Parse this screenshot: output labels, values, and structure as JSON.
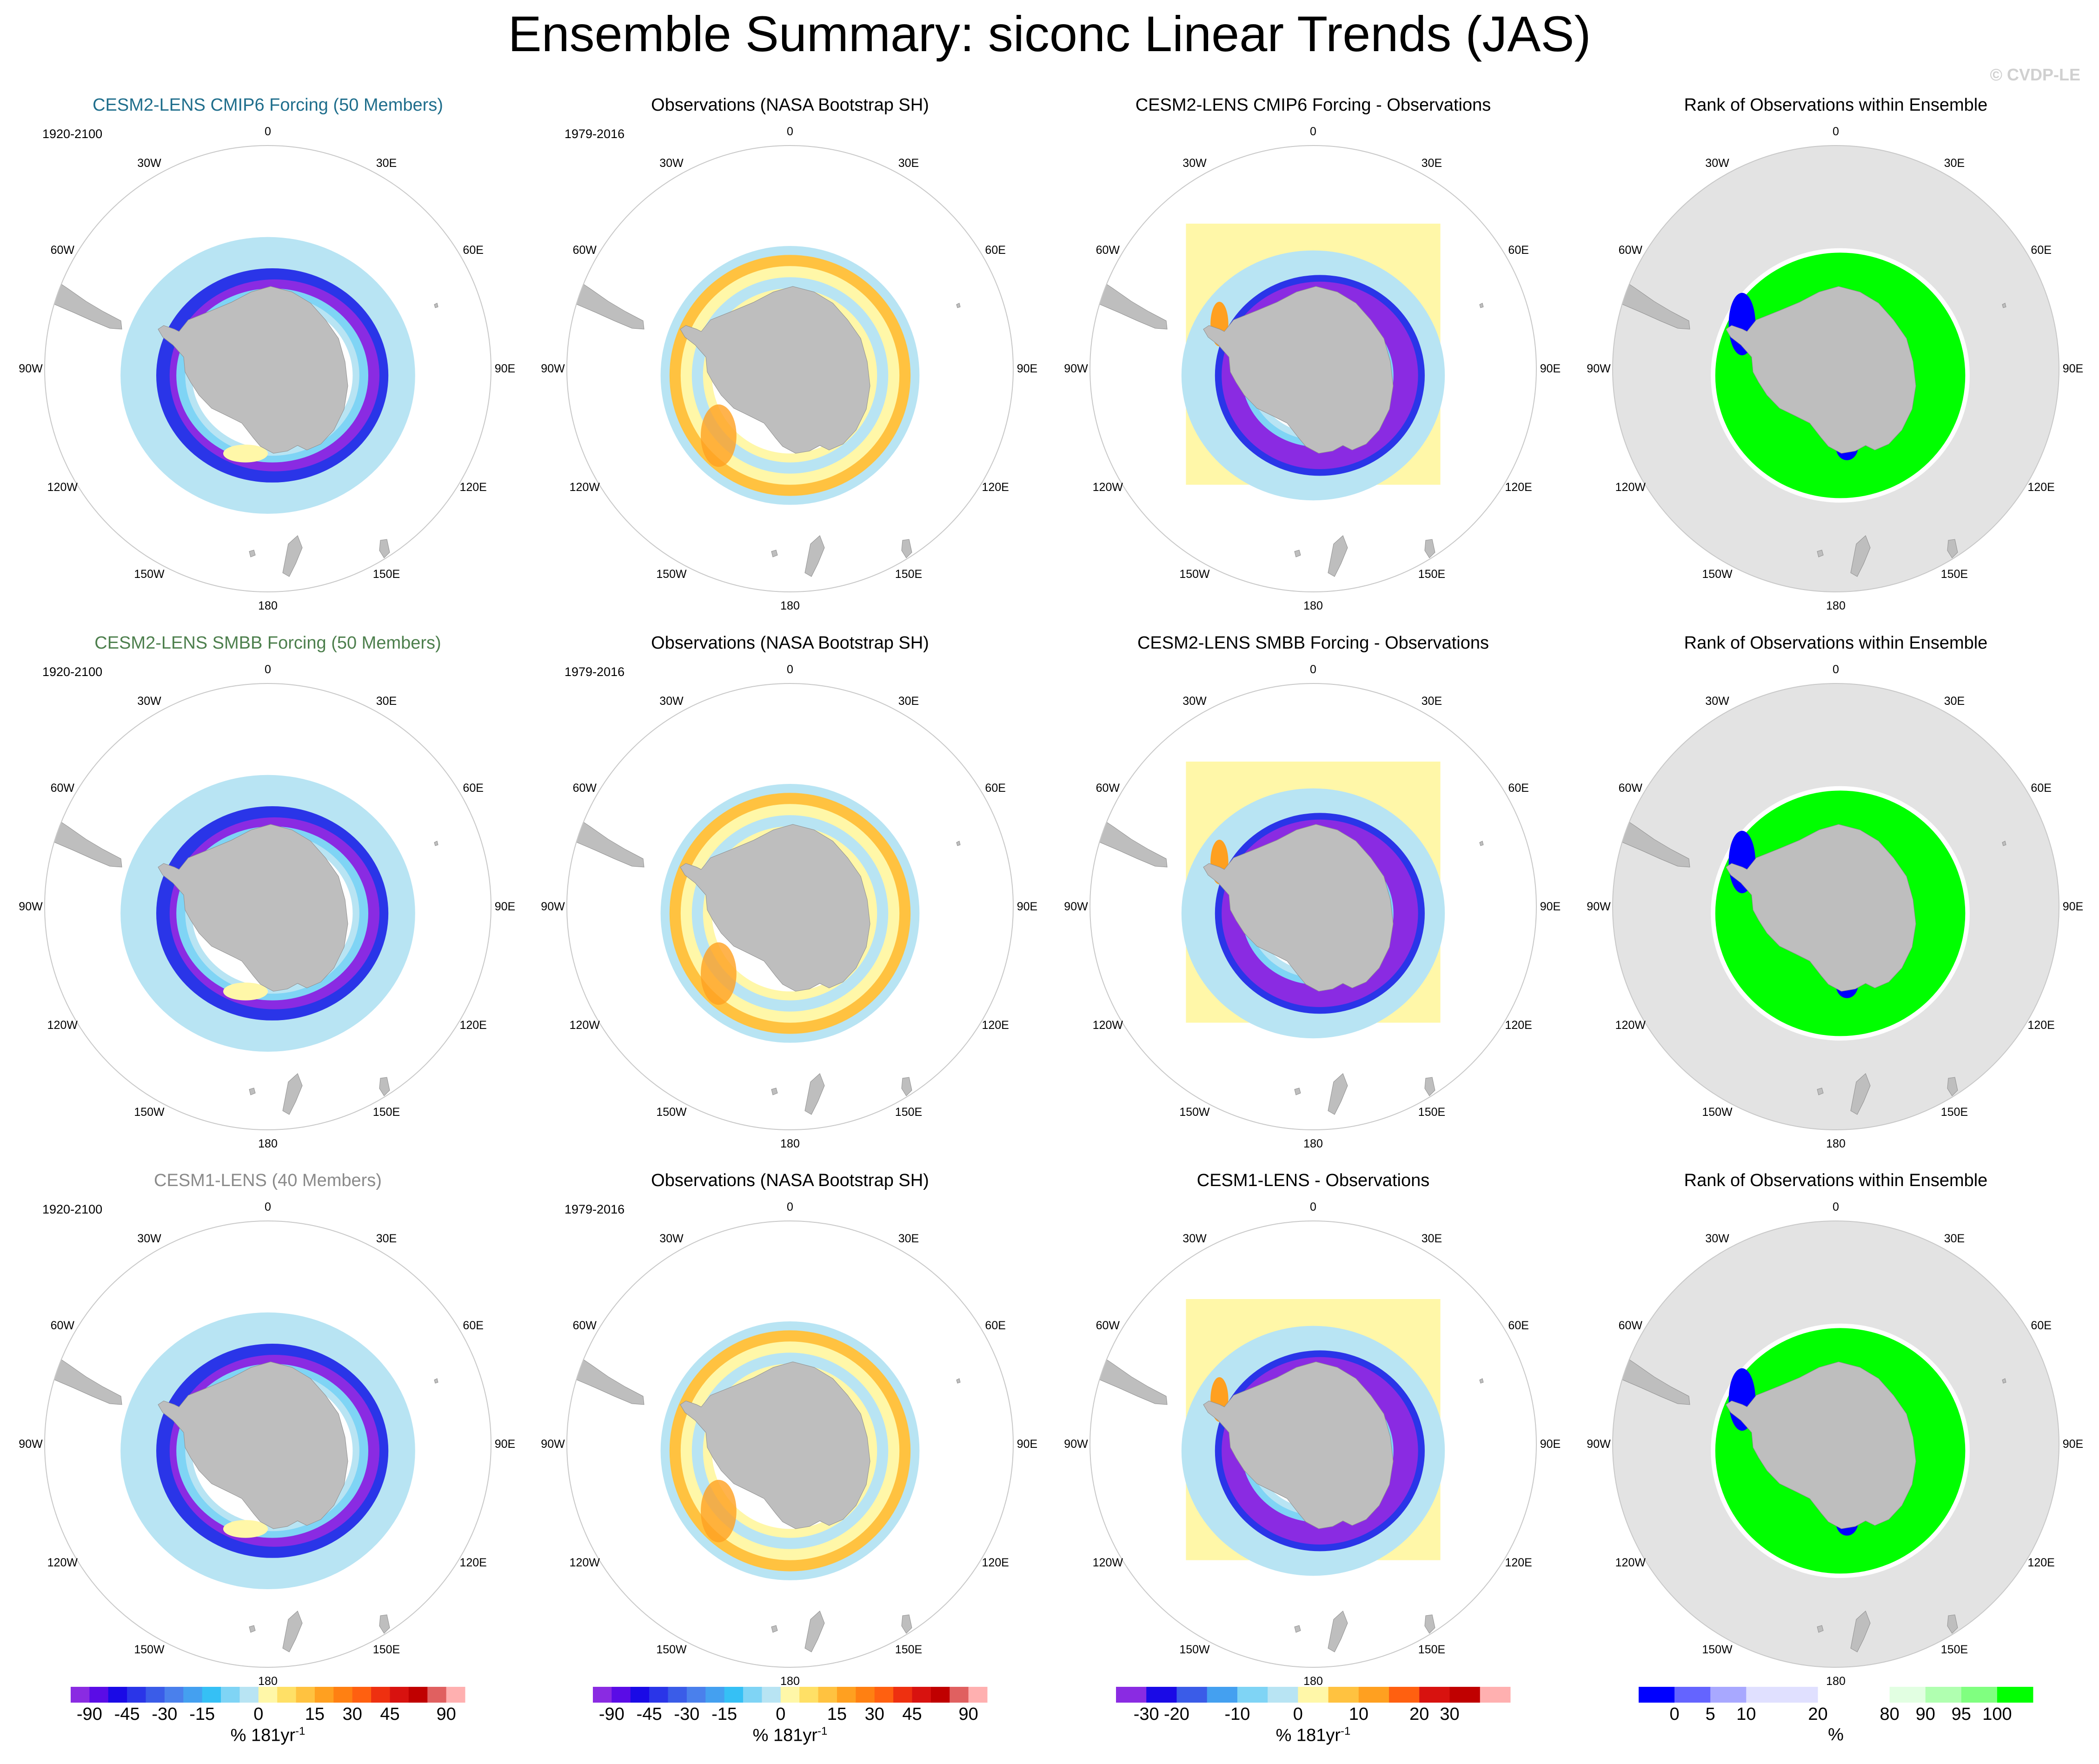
{
  "title": "Ensemble Summary: siconc Linear Trends (JAS)",
  "credit": "© CVDP-LE",
  "map_lon_labels": [
    "0",
    "30E",
    "60E",
    "90E",
    "120E",
    "150E",
    "180",
    "150W",
    "120W",
    "90W",
    "60W",
    "30W"
  ],
  "colors": {
    "ocean": "#ffffff",
    "land": "#bebebe",
    "rank_ocean": "#e3e3e3",
    "ring_edge": "#c8c8c8",
    "title_cmip6": "#1f6e8c",
    "title_smbb": "#4d7f4d",
    "title_cesm1": "#8a8a8a"
  },
  "chart_data": [
    {
      "type": "heatmap",
      "title": "CESM2-LENS CMIP6 Forcing (50 Members)",
      "period": "1920-2100",
      "field": "ensemble_mean_trend",
      "projection": "south-polar-stereographic",
      "colorbar": "trend90"
    },
    {
      "type": "heatmap",
      "title": "Observations (NASA Bootstrap SH)",
      "period": "1979-2016",
      "field": "observed_trend",
      "projection": "south-polar-stereographic",
      "colorbar": "trend90"
    },
    {
      "type": "heatmap",
      "title": "CESM2-LENS CMIP6 Forcing - Observations",
      "period": "",
      "field": "difference",
      "projection": "south-polar-stereographic",
      "colorbar": "diff30"
    },
    {
      "type": "heatmap",
      "title": "Rank of Observations within Ensemble",
      "period": "",
      "field": "rank",
      "projection": "south-polar-stereographic",
      "colorbar": "rank"
    },
    {
      "type": "heatmap",
      "title": "CESM2-LENS SMBB Forcing (50 Members)",
      "period": "1920-2100",
      "field": "ensemble_mean_trend",
      "projection": "south-polar-stereographic",
      "colorbar": "trend90"
    },
    {
      "type": "heatmap",
      "title": "Observations (NASA Bootstrap SH)",
      "period": "1979-2016",
      "field": "observed_trend",
      "projection": "south-polar-stereographic",
      "colorbar": "trend90"
    },
    {
      "type": "heatmap",
      "title": "CESM2-LENS SMBB Forcing - Observations",
      "period": "",
      "field": "difference",
      "projection": "south-polar-stereographic",
      "colorbar": "diff30"
    },
    {
      "type": "heatmap",
      "title": "Rank of Observations within Ensemble",
      "period": "",
      "field": "rank",
      "projection": "south-polar-stereographic",
      "colorbar": "rank"
    },
    {
      "type": "heatmap",
      "title": "CESM1-LENS (40 Members)",
      "period": "1920-2100",
      "field": "ensemble_mean_trend",
      "projection": "south-polar-stereographic",
      "colorbar": "trend90"
    },
    {
      "type": "heatmap",
      "title": "Observations (NASA Bootstrap SH)",
      "period": "1979-2016",
      "field": "observed_trend",
      "projection": "south-polar-stereographic",
      "colorbar": "trend90"
    },
    {
      "type": "heatmap",
      "title": "CESM1-LENS - Observations",
      "period": "",
      "field": "difference",
      "projection": "south-polar-stereographic",
      "colorbar": "diff30"
    },
    {
      "type": "heatmap",
      "title": "Rank of Observations within Ensemble",
      "period": "",
      "field": "rank",
      "projection": "south-polar-stereographic",
      "colorbar": "rank"
    }
  ],
  "panel_title_colors": [
    "#1f6e8c",
    "#000000",
    "#000000",
    "#000000",
    "#4d7f4d",
    "#000000",
    "#000000",
    "#000000",
    "#8a8a8a",
    "#000000",
    "#000000",
    "#000000"
  ],
  "colorbars": {
    "trend90": {
      "unit": "% 181yr",
      "unit_exp": "-1",
      "colors": [
        "#8a2be2",
        "#5a0ce6",
        "#1a0ae6",
        "#2a35e8",
        "#3a5ce8",
        "#4a80ec",
        "#44a0f0",
        "#35c0f5",
        "#7fd4f5",
        "#b8e4f3",
        "#fff7a8",
        "#ffe066",
        "#ffc240",
        "#ffa020",
        "#ff8012",
        "#ff6010",
        "#ee3010",
        "#d8120f",
        "#c00000",
        "#e06060",
        "#ffb0b0"
      ],
      "ticks": [
        "-90",
        "-45",
        "-30",
        "-15",
        "0",
        "15",
        "30",
        "45",
        "90"
      ],
      "tick_boundaries": [
        1,
        3,
        5,
        7,
        10,
        13,
        15,
        17,
        20
      ]
    },
    "diff30": {
      "unit": "% 181yr",
      "unit_exp": "-1",
      "colors": [
        "#8a2be2",
        "#1a0ae6",
        "#3a5ce8",
        "#44a0f0",
        "#7fd4f5",
        "#b8e4f3",
        "#fff7a8",
        "#ffc240",
        "#ffa020",
        "#ff6010",
        "#d8120f",
        "#c00000",
        "#ffb0b0"
      ],
      "ticks": [
        "-30",
        "-20",
        "-10",
        "0",
        "10",
        "20",
        "30"
      ],
      "tick_boundaries": [
        1,
        2,
        4,
        6,
        8,
        10,
        11
      ]
    },
    "rank": {
      "unit": "%",
      "unit_exp": "",
      "colors": [
        "#0000ff",
        "#6464ff",
        "#a8a8ff",
        "#e0e0ff",
        "#e0e0ff",
        "#ffffff",
        "#ffffff",
        "#e2ffe2",
        "#b0ffb0",
        "#80ff80",
        "#00ff00"
      ],
      "ticks": [
        "0",
        "5",
        "10",
        "20",
        "80",
        "90",
        "95",
        "100"
      ],
      "tick_boundaries": [
        1,
        2,
        3,
        5,
        7,
        8,
        9,
        10
      ]
    }
  }
}
